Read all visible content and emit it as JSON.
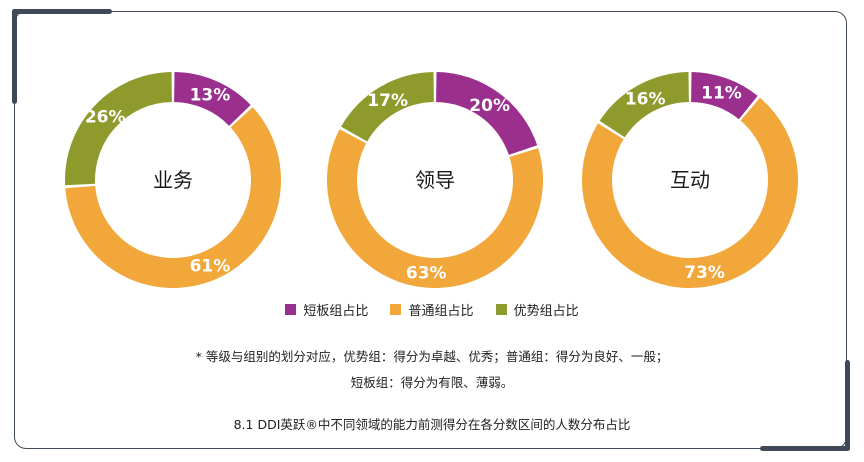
{
  "chart_data": {
    "type": "pie",
    "legend_position": "bottom",
    "series_labels": [
      "短板组占比",
      "普通组占比",
      "优势组占比"
    ],
    "colors": [
      "#9b2f8e",
      "#f1a73a",
      "#8f9a2c"
    ],
    "charts": [
      {
        "center_label": "业务",
        "values": [
          13,
          61,
          26
        ],
        "labels": [
          "13%",
          "61%",
          "26%"
        ]
      },
      {
        "center_label": "领导",
        "values": [
          20,
          63,
          17
        ],
        "labels": [
          "20%",
          "63%",
          "17%"
        ]
      },
      {
        "center_label": "互动",
        "values": [
          11,
          73,
          16
        ],
        "labels": [
          "11%",
          "73%",
          "16%"
        ]
      }
    ]
  },
  "note": {
    "line1": "* 等级与组别的划分对应，优势组：得分为卓越、优秀；普通组：得分为良好、一般；",
    "line2": "短板组：得分为有限、薄弱。"
  },
  "caption": "8.1 DDI英跃®中不同领域的能力前测得分在各分数区间的人数分布占比"
}
